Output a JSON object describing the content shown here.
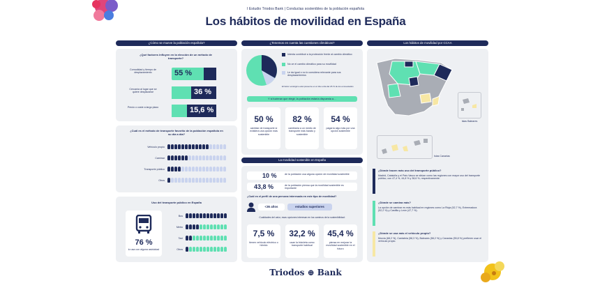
{
  "header": {
    "kicker": "I Estudio Triodos Bank | Conductas sostenibles de la población española",
    "title": "Los hábitos de movilidad en España"
  },
  "col1": {
    "header": "¿Cómo se mueve la población española?",
    "factors": {
      "title": "¿Qué factores influyen en la elección de un método de transporte?",
      "rows": [
        {
          "label": "Comodidad y tiempo de desplazamiento",
          "value": "55 %"
        },
        {
          "label": "Cercanía al lugar que se quiere desplazarse",
          "value": "36 %"
        },
        {
          "label": "Precio o coste a largo plazo",
          "value": "15,6 %"
        }
      ]
    },
    "favorite": {
      "title": "¿Cuál es el método de transporte favorito de la población española en su día a día?",
      "rows": [
        "Vehículo propio",
        "Caminar",
        "Transporte público",
        "Otros"
      ]
    },
    "public": {
      "title": "Uso del transporte público en España",
      "value": "76 %",
      "caption": "lo usa con alguna asiduidad",
      "rows": [
        "Bus",
        "Metro",
        "Taxi",
        "Otros"
      ]
    }
  },
  "col2": {
    "header": "¿Tenemos en cuenta las cuestiones climáticas?",
    "legend": [
      "Intenta contribuir a la protección frente al cambio climático",
      "No ve el cambio climático para su movilidad",
      "Le da igual o no lo considera relevante para sus desplazamientos"
    ],
    "note": "El factor ecológico está presente en el día a día del 26 % de los encuestados",
    "band": "Y si tuvieran que elegir, la población estaría dispuesta a…",
    "stats": [
      {
        "value": "50 %",
        "caption": "cambiar de transporte si existiera una opción más sostenible"
      },
      {
        "value": "82 %",
        "caption": "cambiaría a un medio de transporte más barato y sostenible"
      },
      {
        "value": "54 %",
        "caption": "pagaría algo más por una opción sostenible"
      }
    ],
    "sustainable": {
      "header": "La movilidad sostenible en España",
      "line1_value": "10 %",
      "line1_text": "de la población usa alguna opción de movilidad sostenible",
      "line2_value": "43,8 %",
      "line2_text": "de la población piensa que la movilidad sostenible es importante",
      "question": "¿Cuál es el perfil de una persona interesada en este tipo de movilidad?",
      "age": "<36 años",
      "studies": "estudios superiores",
      "sub": "Cualidades del valor, esas opciones interesan en los caminos de la sostenibilidad:",
      "stats": [
        {
          "value": "7,5 %",
          "caption": "tienen vehículo eléctrico o híbrido"
        },
        {
          "value": "32,2 %",
          "caption": "usan la bicicleta como transporte habitual"
        },
        {
          "value": "45,4 %",
          "caption": "piensa en mejorar la movilidad sostenible en el futuro"
        }
      ]
    }
  },
  "col3": {
    "header": "Los hábitos de movilidad por CCAA",
    "label_baleares": "Islas Baleares",
    "label_canarias": "Islas Canarias",
    "items": [
      {
        "q": "¿Dónde hacen más uso del transporte público?",
        "a": "Madrid, Cataluña y el País Vasco se sitúan como las regiones con mayor uso del transporte público, con 47,4 %, 44,8 % y 38,6 %, respectivamente."
      },
      {
        "q": "¿Dónde se camina más?",
        "a": "La opción de caminar es más habitual en regiones como La Rioja (52,7 %), Extremadura (52,2 %) y Castilla y León (47,7 %)."
      },
      {
        "q": "¿Dónde se usa más el vehículo propio?",
        "a": "Murcia (68,2 %), Cantabria (58,3 %), Baleares (58,2 %) y Canarias (55,8 %) prefieren usar el vehículo propio."
      }
    ]
  },
  "footer": {
    "logo": "Triodos ⊕ Bank"
  },
  "colors": {
    "navy": "#1e2a5a",
    "mint": "#5fe0b2",
    "light_blue": "#c9d3ee",
    "panel": "#eef0f3",
    "yellow": "#f7e7a4"
  }
}
